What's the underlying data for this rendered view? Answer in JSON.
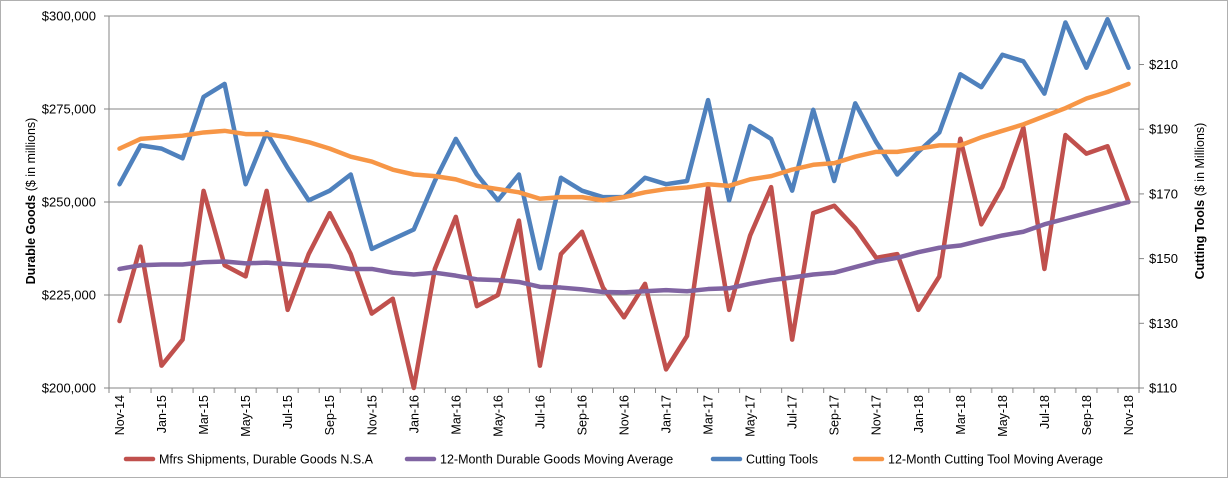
{
  "chart_data": {
    "type": "line",
    "title": "",
    "ylabel_left": "Durable Goods",
    "ylabel_left_unit": " ($ in millions)",
    "ylabel_right": "Cutting Tools",
    "ylabel_right_unit": " ($ in Millions)",
    "ylim_left": [
      200000,
      300000
    ],
    "ylim_right": [
      110,
      225
    ],
    "yticks_left": [
      "$200,000",
      "$225,000",
      "$250,000",
      "$275,000",
      "$300,000"
    ],
    "yticks_right": [
      "$110",
      "$130",
      "$150",
      "$170",
      "$190",
      "$210"
    ],
    "grid": "horizontal",
    "legend_position": "bottom",
    "x_tick_labels": [
      "Nov-14",
      "Jan-15",
      "Mar-15",
      "May-15",
      "Jul-15",
      "Sep-15",
      "Nov-15",
      "Jan-16",
      "Mar-16",
      "May-16",
      "Jul-16",
      "Sep-16",
      "Nov-16",
      "Jan-17",
      "Mar-17",
      "May-17",
      "Jul-17",
      "Sep-17",
      "Nov-17",
      "Jan-18",
      "Mar-18",
      "May-18",
      "Jul-18",
      "Sep-18",
      "Nov-18"
    ],
    "x": [
      "Nov-14",
      "Dec-14",
      "Jan-15",
      "Feb-15",
      "Mar-15",
      "Apr-15",
      "May-15",
      "Jun-15",
      "Jul-15",
      "Aug-15",
      "Sep-15",
      "Oct-15",
      "Nov-15",
      "Dec-15",
      "Jan-16",
      "Feb-16",
      "Mar-16",
      "Apr-16",
      "May-16",
      "Jun-16",
      "Jul-16",
      "Aug-16",
      "Sep-16",
      "Oct-16",
      "Nov-16",
      "Dec-16",
      "Jan-17",
      "Feb-17",
      "Mar-17",
      "Apr-17",
      "May-17",
      "Jun-17",
      "Jul-17",
      "Aug-17",
      "Sep-17",
      "Oct-17",
      "Nov-17",
      "Dec-17",
      "Jan-18",
      "Feb-18",
      "Mar-18",
      "Apr-18",
      "May-18",
      "Jun-18",
      "Jul-18",
      "Aug-18",
      "Sep-18",
      "Oct-18",
      "Nov-18"
    ],
    "series": [
      {
        "name": "Mfrs Shipments, Durable Goods N.S.A",
        "axis": "left",
        "color": "#c0504d",
        "values": [
          218000,
          238000,
          206000,
          213000,
          253000,
          233000,
          230000,
          253000,
          221000,
          236000,
          247000,
          236000,
          220000,
          224000,
          200000,
          232000,
          246000,
          222000,
          225000,
          245000,
          206000,
          236000,
          242000,
          227000,
          219000,
          228000,
          205000,
          214000,
          254000,
          221000,
          241000,
          254000,
          213000,
          247000,
          249000,
          243000,
          235000,
          236000,
          221000,
          230000,
          267000,
          244000,
          254000,
          270000,
          232000,
          268000,
          263000,
          265000,
          250000
        ]
      },
      {
        "name": "12-Month Durable Goods Moving Average",
        "axis": "left",
        "color": "#8064a2",
        "values": [
          232000,
          233000,
          233200,
          233200,
          233800,
          234000,
          233500,
          233700,
          233300,
          233000,
          232800,
          232000,
          232000,
          231000,
          230500,
          231000,
          230200,
          229200,
          229000,
          228500,
          227200,
          227000,
          226500,
          225800,
          225700,
          226000,
          226300,
          226000,
          226600,
          226800,
          228000,
          229000,
          229700,
          230500,
          231000,
          232500,
          234000,
          235000,
          236500,
          237700,
          238300,
          239700,
          241000,
          242000,
          244000,
          245500,
          247000,
          248500,
          250000
        ]
      },
      {
        "name": "Cutting Tools",
        "axis": "right",
        "color": "#4f81bd",
        "values": [
          173,
          185,
          184,
          181,
          200,
          204,
          173,
          189,
          178,
          168,
          171,
          176,
          153,
          156,
          159,
          174,
          187,
          176,
          168,
          176,
          147,
          175,
          171,
          169,
          169,
          175,
          173,
          174,
          199,
          168,
          191,
          187,
          171,
          196,
          174,
          198,
          186,
          176,
          183,
          189,
          207,
          203,
          213,
          211,
          201,
          223,
          209,
          224,
          209
        ]
      },
      {
        "name": "12-Month Cutting Tool Moving Average",
        "axis": "right",
        "color": "#f79646",
        "values": [
          184,
          187,
          187.5,
          188,
          189,
          189.5,
          188.5,
          188.5,
          187.5,
          186,
          184,
          181.5,
          180,
          177.5,
          176,
          175.5,
          174.5,
          172.5,
          171.5,
          170.5,
          168.5,
          169,
          169,
          168,
          169,
          170.5,
          171.5,
          172,
          173,
          172.5,
          174.5,
          175.5,
          177.5,
          179,
          179.5,
          181.5,
          183,
          183,
          184,
          185,
          185,
          187.5,
          189.5,
          191.5,
          194,
          196.5,
          199.5,
          201.5,
          204
        ]
      }
    ]
  }
}
